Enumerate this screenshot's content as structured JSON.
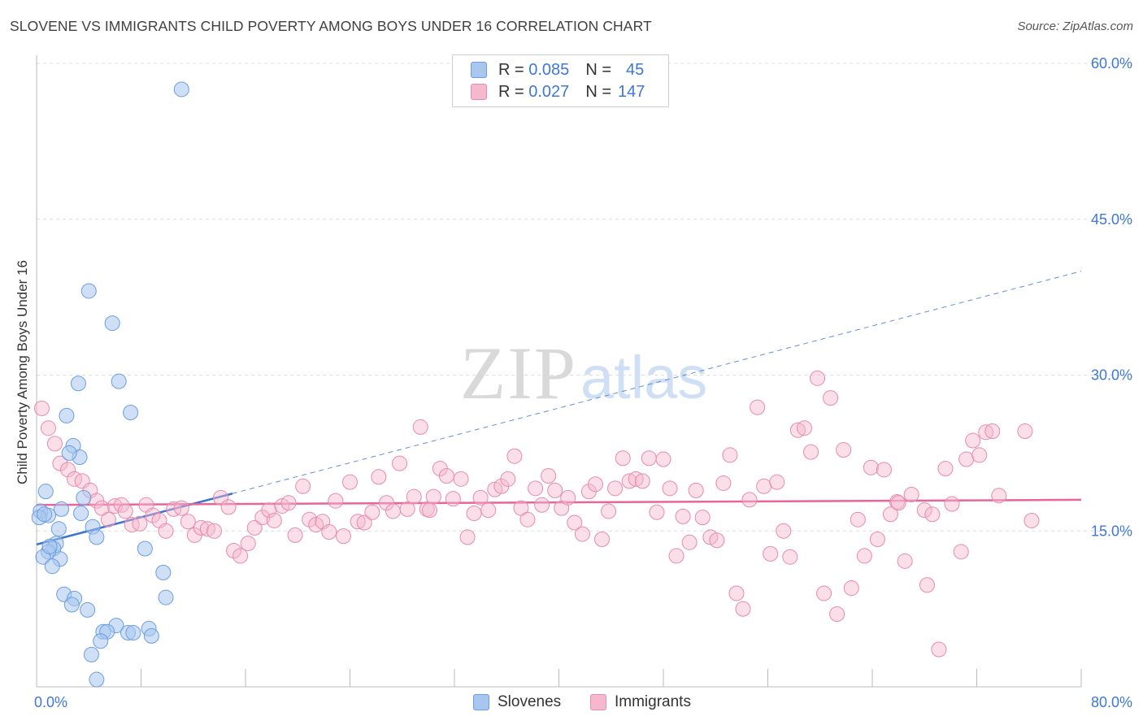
{
  "title": "SLOVENE VS IMMIGRANTS CHILD POVERTY AMONG BOYS UNDER 16 CORRELATION CHART",
  "source": "Source: ZipAtlas.com",
  "watermark": {
    "zip": "ZIP",
    "atlas": "atlas"
  },
  "legend_stats": [
    {
      "r_label": "R =",
      "r_value": "0.085",
      "n_label": "N =",
      "n_value": "45"
    },
    {
      "r_label": "R =",
      "r_value": "0.027",
      "n_label": "N =",
      "n_value": "147"
    }
  ],
  "bottom_legend": {
    "slovenes": "Slovenes",
    "immigrants": "Immigrants"
  },
  "colors": {
    "slovene_fill": "#a8c6ee",
    "slovene_stroke": "#6a9ee0",
    "slovene_line": "#3a74d0",
    "immigrant_fill": "#f5b8cc",
    "immigrant_stroke": "#e88aab",
    "immigrant_line": "#e8649a",
    "tick_label": "#3d78d8",
    "grid": "#dddddd"
  },
  "chart_data": {
    "type": "scatter",
    "title": "SLOVENE VS IMMIGRANTS CHILD POVERTY AMONG BOYS UNDER 16 CORRELATION CHART",
    "xlabel": "",
    "ylabel": "Child Poverty Among Boys Under 16",
    "xlim": [
      0,
      80
    ],
    "ylim": [
      0,
      60
    ],
    "x_tick_labels": [
      "0.0%",
      "80.0%"
    ],
    "y_ticks": [
      15,
      30,
      45,
      60
    ],
    "y_tick_labels": [
      "15.0%",
      "30.0%",
      "45.0%",
      "60.0%"
    ],
    "grid": "horizontal dashed",
    "legend_position": "top-center",
    "series": [
      {
        "name": "Slovenes",
        "r": 0.085,
        "n": 45,
        "trend": {
          "x": [
            0,
            15
          ],
          "y": [
            13.7,
            18.6
          ],
          "extended_to": [
            80,
            40.0
          ]
        },
        "points": [
          [
            11.1,
            57.5
          ],
          [
            4.0,
            38.1
          ],
          [
            5.8,
            35.0
          ],
          [
            6.3,
            29.4
          ],
          [
            3.2,
            29.2
          ],
          [
            7.2,
            26.4
          ],
          [
            2.3,
            26.1
          ],
          [
            2.8,
            23.2
          ],
          [
            3.3,
            22.1
          ],
          [
            2.5,
            22.5
          ],
          [
            0.7,
            18.8
          ],
          [
            3.6,
            18.2
          ],
          [
            1.9,
            17.1
          ],
          [
            0.3,
            16.9
          ],
          [
            0.9,
            16.5
          ],
          [
            3.4,
            16.7
          ],
          [
            4.3,
            15.4
          ],
          [
            1.7,
            15.2
          ],
          [
            4.6,
            14.4
          ],
          [
            1.5,
            13.8
          ],
          [
            1.3,
            13.3
          ],
          [
            0.9,
            13.0
          ],
          [
            0.5,
            12.5
          ],
          [
            1.8,
            12.3
          ],
          [
            1.2,
            11.6
          ],
          [
            8.3,
            13.3
          ],
          [
            9.7,
            11.0
          ],
          [
            2.1,
            8.9
          ],
          [
            2.9,
            8.5
          ],
          [
            2.7,
            7.9
          ],
          [
            3.9,
            7.4
          ],
          [
            9.9,
            8.6
          ],
          [
            6.1,
            5.9
          ],
          [
            8.6,
            5.6
          ],
          [
            5.1,
            5.3
          ],
          [
            5.4,
            5.3
          ],
          [
            7.0,
            5.2
          ],
          [
            7.4,
            5.2
          ],
          [
            8.8,
            4.9
          ],
          [
            4.9,
            4.4
          ],
          [
            4.2,
            3.1
          ],
          [
            4.6,
            0.7
          ],
          [
            0.2,
            16.3
          ],
          [
            0.6,
            16.6
          ],
          [
            1.0,
            13.5
          ]
        ]
      },
      {
        "name": "Immigrants",
        "r": 0.027,
        "n": 147,
        "trend": {
          "x": [
            0,
            80
          ],
          "y": [
            17.5,
            18.0
          ]
        },
        "points": [
          [
            0.4,
            26.8
          ],
          [
            0.9,
            24.9
          ],
          [
            1.4,
            23.4
          ],
          [
            1.8,
            21.5
          ],
          [
            2.4,
            20.9
          ],
          [
            2.9,
            20.0
          ],
          [
            3.5,
            19.8
          ],
          [
            4.1,
            18.9
          ],
          [
            4.6,
            17.9
          ],
          [
            5.0,
            17.2
          ],
          [
            5.5,
            16.1
          ],
          [
            6.0,
            17.4
          ],
          [
            6.5,
            17.5
          ],
          [
            6.8,
            16.9
          ],
          [
            7.3,
            15.6
          ],
          [
            7.9,
            15.7
          ],
          [
            8.4,
            17.5
          ],
          [
            8.9,
            16.5
          ],
          [
            9.4,
            16.0
          ],
          [
            9.9,
            15.0
          ],
          [
            10.5,
            17.1
          ],
          [
            11.1,
            17.2
          ],
          [
            11.6,
            15.9
          ],
          [
            12.1,
            14.6
          ],
          [
            12.6,
            15.3
          ],
          [
            13.1,
            15.2
          ],
          [
            13.6,
            15.0
          ],
          [
            14.1,
            18.2
          ],
          [
            14.7,
            17.3
          ],
          [
            15.1,
            13.1
          ],
          [
            15.6,
            12.6
          ],
          [
            16.2,
            13.8
          ],
          [
            16.7,
            15.3
          ],
          [
            17.3,
            16.3
          ],
          [
            17.8,
            17.0
          ],
          [
            18.2,
            16.0
          ],
          [
            18.8,
            17.4
          ],
          [
            19.3,
            17.7
          ],
          [
            19.8,
            14.6
          ],
          [
            20.4,
            19.3
          ],
          [
            20.9,
            16.1
          ],
          [
            21.4,
            15.6
          ],
          [
            21.9,
            15.9
          ],
          [
            22.4,
            14.9
          ],
          [
            22.9,
            17.9
          ],
          [
            23.5,
            14.5
          ],
          [
            24.0,
            19.7
          ],
          [
            24.6,
            15.9
          ],
          [
            25.1,
            15.8
          ],
          [
            25.7,
            16.8
          ],
          [
            26.2,
            20.2
          ],
          [
            26.8,
            17.7
          ],
          [
            27.3,
            16.9
          ],
          [
            27.8,
            21.5
          ],
          [
            28.4,
            17.1
          ],
          [
            28.9,
            18.3
          ],
          [
            29.4,
            25.0
          ],
          [
            29.9,
            17.1
          ],
          [
            30.4,
            18.3
          ],
          [
            30.9,
            21.0
          ],
          [
            31.4,
            20.3
          ],
          [
            31.9,
            18.1
          ],
          [
            32.5,
            20.0
          ],
          [
            33.0,
            14.4
          ],
          [
            33.5,
            16.7
          ],
          [
            34.0,
            18.2
          ],
          [
            34.6,
            17.0
          ],
          [
            35.1,
            19.0
          ],
          [
            35.6,
            19.3
          ],
          [
            36.1,
            20.0
          ],
          [
            36.6,
            22.2
          ],
          [
            37.1,
            17.2
          ],
          [
            37.6,
            16.1
          ],
          [
            38.2,
            19.1
          ],
          [
            38.7,
            17.5
          ],
          [
            39.2,
            20.3
          ],
          [
            39.7,
            18.9
          ],
          [
            40.2,
            17.2
          ],
          [
            40.7,
            18.2
          ],
          [
            41.2,
            15.8
          ],
          [
            41.8,
            14.7
          ],
          [
            42.3,
            18.8
          ],
          [
            42.8,
            19.5
          ],
          [
            43.3,
            14.2
          ],
          [
            43.8,
            16.9
          ],
          [
            44.3,
            19.1
          ],
          [
            44.9,
            22.0
          ],
          [
            45.4,
            19.8
          ],
          [
            45.9,
            20.0
          ],
          [
            46.4,
            19.8
          ],
          [
            46.9,
            22.0
          ],
          [
            47.5,
            16.8
          ],
          [
            48.0,
            21.9
          ],
          [
            48.5,
            19.1
          ],
          [
            49.0,
            12.6
          ],
          [
            49.5,
            16.4
          ],
          [
            50.0,
            13.9
          ],
          [
            50.5,
            18.9
          ],
          [
            51.0,
            16.3
          ],
          [
            51.6,
            14.4
          ],
          [
            52.1,
            14.1
          ],
          [
            52.6,
            19.6
          ],
          [
            53.1,
            22.3
          ],
          [
            53.6,
            9.0
          ],
          [
            54.1,
            7.5
          ],
          [
            54.6,
            18.0
          ],
          [
            55.2,
            26.9
          ],
          [
            55.7,
            19.3
          ],
          [
            56.2,
            12.8
          ],
          [
            56.7,
            19.7
          ],
          [
            57.2,
            15.0
          ],
          [
            57.7,
            12.5
          ],
          [
            58.3,
            24.7
          ],
          [
            58.8,
            24.9
          ],
          [
            59.3,
            22.6
          ],
          [
            59.8,
            29.7
          ],
          [
            60.3,
            9.0
          ],
          [
            60.8,
            27.8
          ],
          [
            61.3,
            7.0
          ],
          [
            61.8,
            22.8
          ],
          [
            62.4,
            9.5
          ],
          [
            62.9,
            16.1
          ],
          [
            63.4,
            12.6
          ],
          [
            63.9,
            21.1
          ],
          [
            64.4,
            14.2
          ],
          [
            64.9,
            20.9
          ],
          [
            65.4,
            16.6
          ],
          [
            65.9,
            17.8
          ],
          [
            66.5,
            12.1
          ],
          [
            67.0,
            18.5
          ],
          [
            68.0,
            17.0
          ],
          [
            68.6,
            16.6
          ],
          [
            69.6,
            21.0
          ],
          [
            69.1,
            3.6
          ],
          [
            68.2,
            9.8
          ],
          [
            70.1,
            17.6
          ],
          [
            70.8,
            13.0
          ],
          [
            71.2,
            21.9
          ],
          [
            71.7,
            23.7
          ],
          [
            72.2,
            22.3
          ],
          [
            72.7,
            24.5
          ],
          [
            73.2,
            24.6
          ],
          [
            73.7,
            18.4
          ],
          [
            75.7,
            24.6
          ],
          [
            76.2,
            16.0
          ],
          [
            66.0,
            17.7
          ],
          [
            30.1,
            17.0
          ]
        ]
      }
    ]
  }
}
